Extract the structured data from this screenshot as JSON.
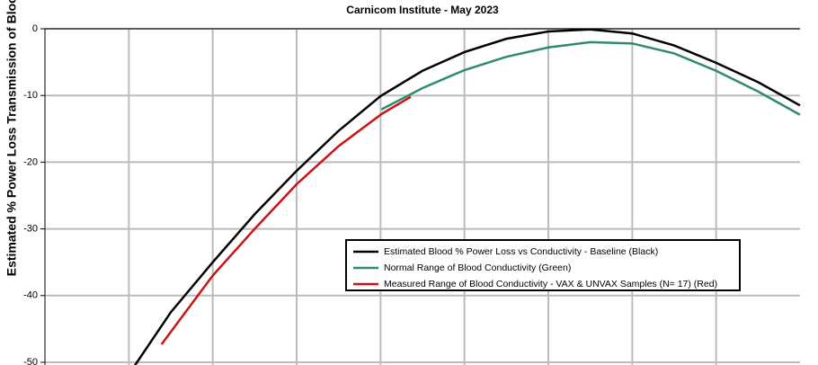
{
  "chart_data": {
    "type": "line",
    "subtitle": "Carnicom Institute - May 2023",
    "y_label": "Estimated % Power Loss Transmission of Blood",
    "xlim": [
      0,
      9
    ],
    "xticks": [
      1,
      2,
      3,
      4,
      5,
      6,
      7,
      8
    ],
    "ylim": [
      -50,
      0
    ],
    "yticks": [
      0,
      -10,
      -20,
      -30,
      -40,
      -50
    ],
    "grid": true,
    "legend": "center-right",
    "series": [
      {
        "name": "Estimated Blood % Power Loss vs Conductivity - Baseline (Black)",
        "color": "#000000",
        "x": [
          1.07,
          1.5,
          2,
          2.5,
          3,
          3.5,
          4,
          4.5,
          5,
          5.5,
          6,
          6.5,
          7,
          7.5,
          8,
          8.5,
          9
        ],
        "values": [
          -50.5,
          -42.5,
          -35,
          -27.8,
          -21.3,
          -15.3,
          -10.1,
          -6.3,
          -3.5,
          -1.5,
          -0.4,
          -0.1,
          -0.7,
          -2.5,
          -5.1,
          -8,
          -11.5
        ]
      },
      {
        "name": "Normal Range of Blood Conductivity (Green)",
        "color": "#2e8b6e",
        "x": [
          4.01,
          4.5,
          5,
          5.5,
          6,
          6.5,
          7,
          7.5,
          8,
          8.5,
          9
        ],
        "values": [
          -12.1,
          -8.9,
          -6.2,
          -4.2,
          -2.8,
          -2.0,
          -2.2,
          -3.7,
          -6.3,
          -9.4,
          -12.9
        ]
      },
      {
        "name": "Measured Range of Blood Conductivity - VAX & UNVAX  Samples (N= 17) (Red)",
        "color": "#cc1111",
        "x": [
          1.39,
          2,
          2.5,
          3,
          3.5,
          4.01,
          4.36
        ],
        "values": [
          -47.3,
          -37,
          -30,
          -23.3,
          -17.6,
          -12.8,
          -10.2
        ]
      }
    ]
  }
}
